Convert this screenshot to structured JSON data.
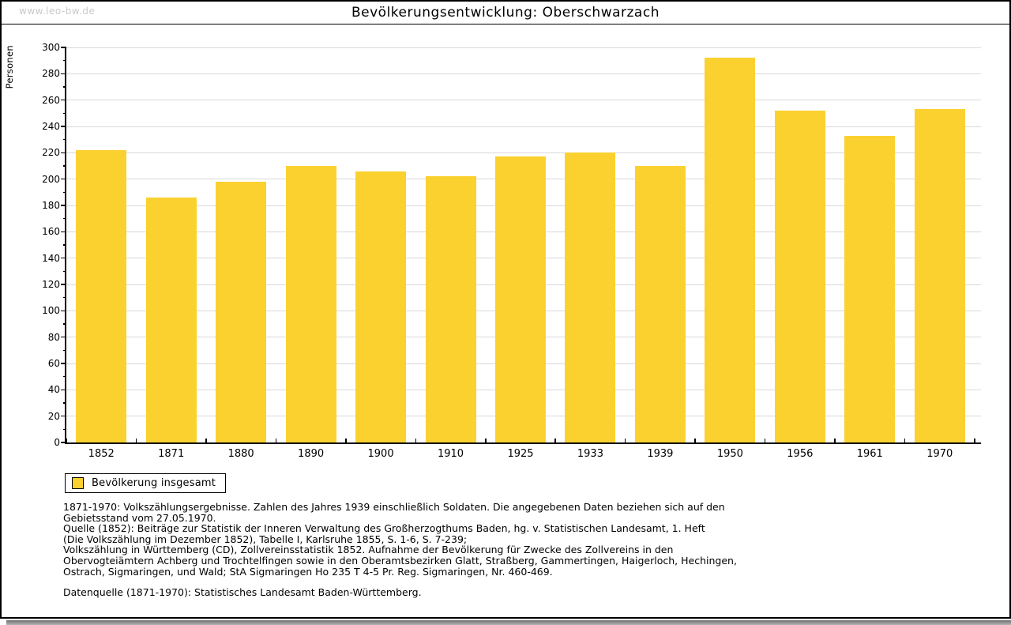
{
  "watermark": "www.leo-bw.de",
  "header": {
    "title": "Bevölkerungsentwicklung: Oberschwarzach"
  },
  "legend": {
    "label": "Bevölkerung insgesamt"
  },
  "colors": {
    "bar": "#FBD130",
    "grid": "#d9d9d9",
    "axis": "#000000",
    "watermark": "#c9c9c9",
    "shadow": "#8c8c8c"
  },
  "chart_data": {
    "type": "bar",
    "title": "Bevölkerungsentwicklung: Oberschwarzach",
    "xlabel": "",
    "ylabel": "Personen",
    "categories": [
      "1852",
      "1871",
      "1880",
      "1890",
      "1900",
      "1910",
      "1925",
      "1933",
      "1939",
      "1950",
      "1956",
      "1961",
      "1970"
    ],
    "series": [
      {
        "name": "Bevölkerung insgesamt",
        "values": [
          222,
          186,
          198,
          210,
          206,
          202,
          217,
          220,
          210,
          292,
          252,
          233,
          253
        ],
        "color": "#FBD130"
      }
    ],
    "ylim": [
      0,
      300
    ],
    "ytick_major": 20,
    "ytick_minor": 10,
    "grid": true,
    "legend_position": "bottom-left"
  },
  "footer": {
    "lines": [
      "1871-1970: Volkszählungsergebnisse. Zahlen des Jahres 1939 einschließlich Soldaten. Die angegebenen Daten beziehen sich auf den",
      "Gebietsstand vom 27.05.1970.",
      "Quelle (1852): Beiträge zur Statistik der Inneren Verwaltung des Großherzogthums Baden, hg. v. Statistischen Landesamt, 1. Heft",
      "(Die Volkszählung im Dezember 1852), Tabelle I, Karlsruhe 1855, S. 1-6, S. 7-239;",
      "Volkszählung in Württemberg (CD), Zollvereinsstatistik 1852. Aufnahme der Bevölkerung für Zwecke des Zollvereins in den",
      "Obervogteiämtern Achberg und Trochtelfingen sowie in den Oberamtsbezirken Glatt, Straßberg, Gammertingen, Haigerloch, Hechingen,",
      "Ostrach, Sigmaringen, und Wald; StA Sigmaringen Ho 235 T 4-5 Pr. Reg. Sigmaringen, Nr. 460-469."
    ],
    "datasource": "Datenquelle (1871-1970): Statistisches Landesamt Baden-Württemberg."
  }
}
